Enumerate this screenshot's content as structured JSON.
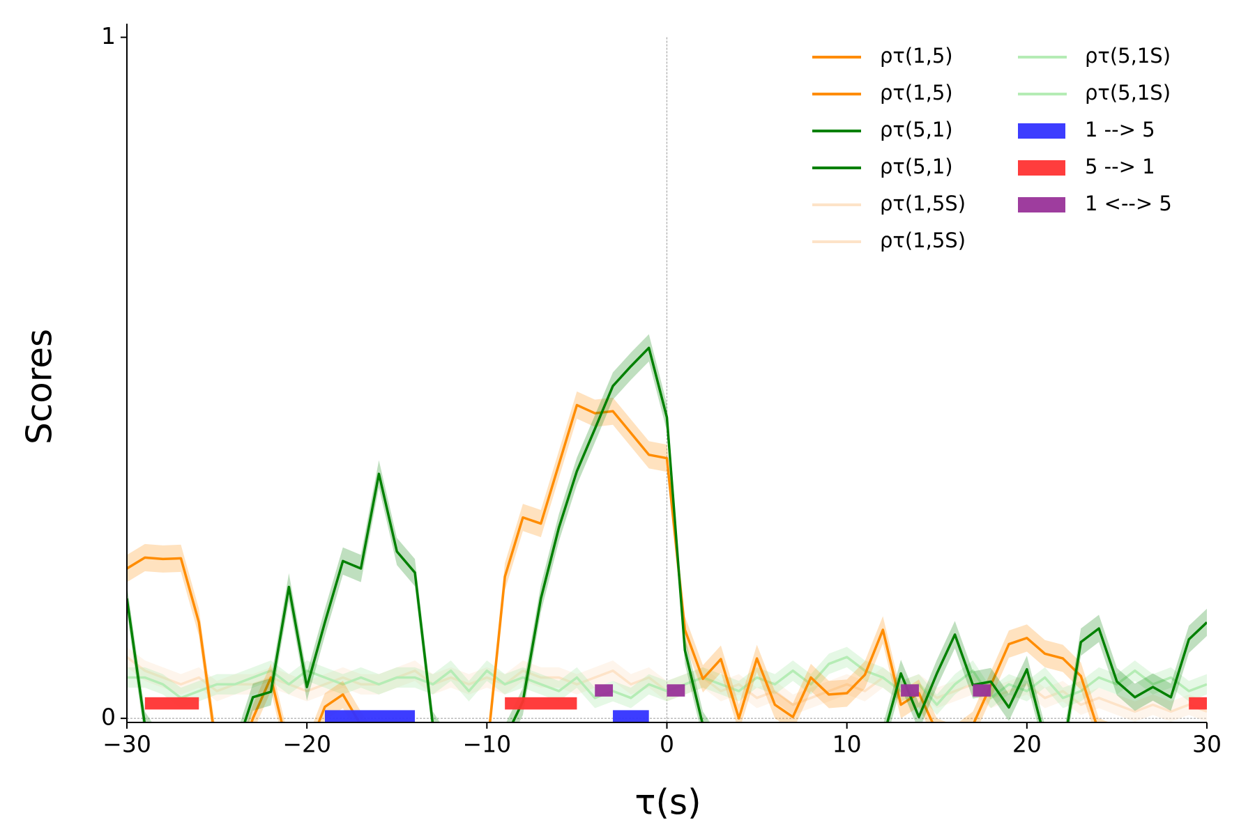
{
  "chart_data": {
    "type": "line",
    "ylabel": "Scores",
    "xlabel": "τ(s)",
    "xlim": [
      -30,
      30
    ],
    "ylim": [
      -0.006,
      1.02
    ],
    "xticks": [
      {
        "value": -30,
        "label": "−30"
      },
      {
        "value": -20,
        "label": "−20"
      },
      {
        "value": -10,
        "label": "−10"
      },
      0,
      10,
      20,
      30
    ],
    "yticks": [
      0,
      1
    ],
    "vline": 0,
    "hline": 0,
    "x": [
      -30,
      -29,
      -28,
      -27,
      -26,
      -25,
      -24,
      -23,
      -22,
      -21,
      -20,
      -19,
      -18,
      -17,
      -16,
      -15,
      -14,
      -13,
      -12,
      -11,
      -10,
      -9,
      -8,
      -7,
      -6,
      -5,
      -4,
      -3,
      -2,
      -1,
      0,
      1,
      2,
      3,
      4,
      5,
      6,
      7,
      8,
      9,
      10,
      11,
      12,
      13,
      14,
      15,
      16,
      17,
      18,
      19,
      20,
      21,
      22,
      23,
      24,
      25,
      26,
      27,
      28,
      29,
      30
    ],
    "series": [
      {
        "name": "ρτ(1,5S)",
        "color": "#fde3c8",
        "band_opacity": 0.35,
        "error": 0.015,
        "values": [
          0.09,
          0.07,
          0.06,
          0.05,
          0.06,
          0.04,
          0.05,
          0.05,
          0.06,
          0.05,
          0.04,
          0.05,
          0.06,
          0.05,
          0.05,
          0.06,
          0.07,
          0.05,
          0.06,
          0.05,
          0.06,
          0.05,
          0.07,
          0.06,
          0.06,
          0.05,
          0.06,
          0.07,
          0.05,
          0.06,
          0.04,
          0.05,
          0.06,
          0.04,
          0.05,
          0.03,
          0.04,
          0.02,
          0.03,
          0.04,
          0.05,
          0.04,
          0.06,
          0.04,
          0.05,
          0.03,
          0.04,
          0.05,
          0.03,
          0.04,
          0.05,
          0.03,
          0.04,
          0.02,
          0.03,
          0.02,
          0.01,
          0.02,
          0.01,
          0.02,
          0.01
        ]
      },
      {
        "name": "ρτ(5,1S)",
        "color": "#b5ecb5",
        "band_opacity": 0.35,
        "error": 0.015,
        "values": [
          0.06,
          0.06,
          0.05,
          0.03,
          0.04,
          0.05,
          0.05,
          0.06,
          0.07,
          0.05,
          0.07,
          0.06,
          0.05,
          0.06,
          0.05,
          0.06,
          0.06,
          0.05,
          0.07,
          0.04,
          0.07,
          0.05,
          0.06,
          0.05,
          0.04,
          0.06,
          0.03,
          0.04,
          0.03,
          0.05,
          0.04,
          0.05,
          0.06,
          0.05,
          0.04,
          0.06,
          0.05,
          0.07,
          0.05,
          0.08,
          0.09,
          0.07,
          0.06,
          0.04,
          0.05,
          0.02,
          0.05,
          0.07,
          0.03,
          0.05,
          0.04,
          0.06,
          0.03,
          0.04,
          0.06,
          0.05,
          0.07,
          0.05,
          0.06,
          0.04,
          0.05
        ]
      },
      {
        "name": "ρτ(1,5)",
        "color": "#ff8c00",
        "band_opacity": 0.25,
        "error": 0.02,
        "values": [
          0.22,
          0.236,
          0.234,
          0.235,
          0.141,
          -0.05,
          -0.08,
          0.0,
          0.06,
          -0.05,
          -0.05,
          0.017,
          0.035,
          -0.01,
          -0.05,
          -0.05,
          -0.05,
          -0.05,
          -0.05,
          -0.05,
          -0.05,
          0.208,
          0.295,
          0.286,
          0.373,
          0.46,
          0.448,
          0.451,
          0.419,
          0.387,
          0.382,
          0.13,
          0.058,
          0.087,
          0,
          0.088,
          0.02,
          0.002,
          0.06,
          0.035,
          0.037,
          0.064,
          0.13,
          0.02,
          0.037,
          -0.02,
          -0.03,
          -0.01,
          0.049,
          0.109,
          0.118,
          0.095,
          0.088,
          0.062,
          -0.02,
          -0.03,
          -0.03,
          -0.03,
          -0.03,
          -0.03,
          -0.03
        ]
      },
      {
        "name": "ρτ(5,1)",
        "color": "#008000",
        "band_opacity": 0.25,
        "error": 0.02,
        "values": [
          0.176,
          -0.01,
          -0.05,
          -0.05,
          -0.05,
          -0.05,
          -0.05,
          0.031,
          0.039,
          0.193,
          0.046,
          0.141,
          0.231,
          0.22,
          0.359,
          0.245,
          0.214,
          -0.01,
          -0.05,
          -0.05,
          -0.05,
          -0.03,
          0.025,
          0.176,
          0.28,
          0.363,
          0.425,
          0.488,
          0.517,
          0.544,
          0.442,
          0.1,
          -0.01,
          -0.05,
          -0.05,
          -0.05,
          -0.05,
          -0.05,
          -0.05,
          -0.05,
          -0.05,
          -0.05,
          -0.03,
          0.066,
          0.002,
          0.066,
          0.123,
          0.049,
          0.054,
          0.016,
          0.072,
          -0.03,
          -0.05,
          0.112,
          0.132,
          0.054,
          0.031,
          0.046,
          0.031,
          0.116,
          0.141
        ]
      }
    ],
    "spans": [
      {
        "name": "1 --> 5",
        "color": "#3333ff",
        "y": [
          -0.006,
          0.012
        ],
        "ranges": [
          [
            -19,
            -14
          ],
          [
            -3,
            -1
          ]
        ]
      },
      {
        "name": "5 --> 1",
        "color": "#ff3333",
        "y": [
          0.013,
          0.031
        ],
        "ranges": [
          [
            -29,
            -26
          ],
          [
            -9,
            -5
          ],
          [
            29,
            30
          ]
        ]
      },
      {
        "name": "1 <--> 5",
        "color": "#993399",
        "y": [
          0.032,
          0.05
        ],
        "ranges": [
          [
            -4,
            -3
          ],
          [
            0,
            1
          ],
          [
            13,
            14
          ],
          [
            17,
            18
          ]
        ]
      }
    ],
    "legend": {
      "position": "upper right",
      "entries": [
        {
          "label": "ρτ(1,5)",
          "color": "#ff8c00",
          "kind": "line"
        },
        {
          "label": "ρτ(1,5)",
          "color": "#ff8c00",
          "kind": "line"
        },
        {
          "label": "ρτ(5,1)",
          "color": "#008000",
          "kind": "line"
        },
        {
          "label": "ρτ(5,1)",
          "color": "#008000",
          "kind": "line"
        },
        {
          "label": "ρτ(1,5S)",
          "color": "#fde3c8",
          "kind": "line"
        },
        {
          "label": "ρτ(1,5S)",
          "color": "#fde3c8",
          "kind": "line"
        },
        {
          "label": "ρτ(5,1S)",
          "color": "#b5ecb5",
          "kind": "line"
        },
        {
          "label": "ρτ(5,1S)",
          "color": "#b5ecb5",
          "kind": "line"
        },
        {
          "label": "1 --> 5",
          "color": "#3333ff",
          "kind": "patch"
        },
        {
          "label": "5 --> 1",
          "color": "#ff3333",
          "kind": "patch"
        },
        {
          "label": "1 <--> 5",
          "color": "#993399",
          "kind": "patch"
        }
      ]
    }
  }
}
